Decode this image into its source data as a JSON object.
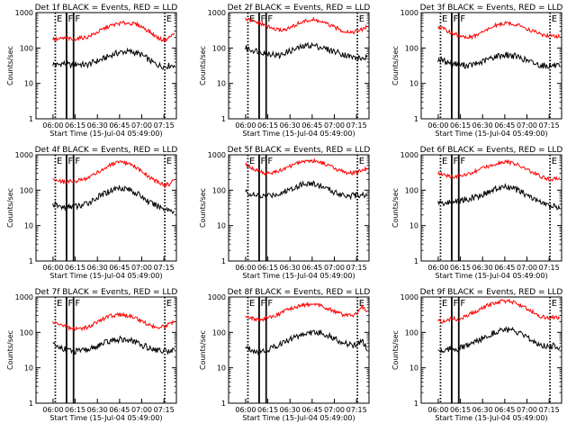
{
  "colors": {
    "events": "#000000",
    "lld": "#ff0000",
    "background": "#ffffff",
    "axes": "#000000"
  },
  "chart_data": [
    {
      "type": "line",
      "title": "Det 1f  BLACK = Events, RED = LLD",
      "xlabel": "Start Time (15-Jul-04 05:49:00)",
      "ylabel": "Counts/sec",
      "yscale": "log",
      "ylim": [
        1,
        1000
      ],
      "yticks": [
        "1",
        "10",
        "100",
        "1000"
      ],
      "xticks": [
        "06:00",
        "06:15",
        "06:30",
        "06:45",
        "07:00",
        "07:15"
      ],
      "markers": [
        {
          "label": "E",
          "style": "dotted"
        },
        {
          "label": "F",
          "style": "solid"
        },
        {
          "label": "F",
          "style": "solid"
        },
        {
          "label": "E",
          "style": "dotted"
        }
      ],
      "series": [
        {
          "color": "black",
          "values": [
            35,
            33,
            37,
            34,
            32,
            36,
            34,
            33,
            38,
            42,
            47,
            54,
            62,
            70,
            76,
            79,
            78,
            74,
            66,
            55,
            44,
            36,
            32,
            30,
            32,
            33
          ]
        },
        {
          "color": "red",
          "values": [
            180,
            175,
            185,
            190,
            170,
            188,
            195,
            200,
            230,
            270,
            320,
            380,
            430,
            470,
            500,
            510,
            500,
            470,
            420,
            350,
            280,
            220,
            180,
            170,
            200,
            260
          ]
        }
      ]
    },
    {
      "type": "line",
      "title": "Det 2f  BLACK = Events, RED = LLD",
      "xlabel": "Start Time (15-Jul-04 05:49:00)",
      "ylabel": "Counts/sec",
      "yscale": "log",
      "ylim": [
        1,
        1000
      ],
      "yticks": [
        "1",
        "10",
        "100",
        "1000"
      ],
      "xticks": [
        "06:00",
        "06:15",
        "06:30",
        "06:45",
        "07:00",
        "07:15"
      ],
      "markers": [
        {
          "label": "E",
          "style": "dotted"
        },
        {
          "label": "F",
          "style": "solid"
        },
        {
          "label": "F",
          "style": "solid"
        },
        {
          "label": "E",
          "style": "dotted"
        }
      ],
      "series": [
        {
          "color": "black",
          "values": [
            100,
            90,
            85,
            80,
            75,
            70,
            65,
            60,
            72,
            80,
            90,
            100,
            110,
            120,
            118,
            110,
            100,
            90,
            82,
            75,
            68,
            60,
            55,
            52,
            50,
            55
          ]
        },
        {
          "color": "red",
          "values": [
            650,
            600,
            550,
            500,
            430,
            380,
            340,
            320,
            330,
            360,
            420,
            500,
            560,
            600,
            620,
            580,
            520,
            460,
            400,
            350,
            310,
            290,
            280,
            300,
            330,
            390
          ]
        }
      ]
    },
    {
      "type": "line",
      "title": "Det 3f  BLACK = Events, RED = LLD",
      "xlabel": "Start Time (15-Jul-04 05:49:00)",
      "ylabel": "Counts/sec",
      "yscale": "log",
      "ylim": [
        1,
        1000
      ],
      "yticks": [
        "1",
        "10",
        "100",
        "1000"
      ],
      "xticks": [
        "06:00",
        "06:15",
        "06:30",
        "06:45",
        "07:00",
        "07:15"
      ],
      "markers": [
        {
          "label": "E",
          "style": "dotted"
        },
        {
          "label": "F",
          "style": "solid"
        },
        {
          "label": "F",
          "style": "solid"
        },
        {
          "label": "E",
          "style": "dotted"
        }
      ],
      "series": [
        {
          "color": "black",
          "values": [
            48,
            44,
            40,
            37,
            35,
            33,
            32,
            33,
            36,
            40,
            46,
            52,
            58,
            62,
            64,
            62,
            58,
            52,
            46,
            40,
            36,
            33,
            32,
            31,
            32,
            30
          ]
        },
        {
          "color": "red",
          "values": [
            400,
            350,
            300,
            260,
            230,
            210,
            200,
            205,
            230,
            270,
            320,
            380,
            440,
            480,
            500,
            490,
            460,
            420,
            370,
            320,
            280,
            250,
            230,
            220,
            215,
            210
          ]
        }
      ]
    },
    {
      "type": "line",
      "title": "Det 4f  BLACK = Events, RED = LLD",
      "xlabel": "Start Time (15-Jul-04 05:49:00)",
      "ylabel": "Counts/sec",
      "yscale": "log",
      "ylim": [
        1,
        1000
      ],
      "yticks": [
        "1",
        "10",
        "100",
        "1000"
      ],
      "xticks": [
        "06:00",
        "06:15",
        "06:30",
        "06:45",
        "07:00",
        "07:15"
      ],
      "markers": [
        {
          "label": "E",
          "style": "dotted"
        },
        {
          "label": "F",
          "style": "solid"
        },
        {
          "label": "F",
          "style": "solid"
        },
        {
          "label": "E",
          "style": "dotted"
        }
      ],
      "series": [
        {
          "color": "black",
          "values": [
            40,
            36,
            33,
            34,
            36,
            35,
            37,
            42,
            50,
            60,
            72,
            85,
            100,
            112,
            118,
            112,
            100,
            85,
            70,
            55,
            44,
            38,
            34,
            30,
            28,
            26
          ]
        },
        {
          "color": "red",
          "values": [
            210,
            190,
            175,
            170,
            180,
            185,
            195,
            220,
            260,
            310,
            370,
            440,
            520,
            580,
            600,
            570,
            510,
            440,
            360,
            290,
            230,
            190,
            160,
            140,
            150,
            190
          ]
        }
      ]
    },
    {
      "type": "line",
      "title": "Det 5f  BLACK = Events, RED = LLD",
      "xlabel": "Start Time (15-Jul-04 05:49:00)",
      "ylabel": "Counts/sec",
      "yscale": "log",
      "ylim": [
        1,
        1000
      ],
      "yticks": [
        "1",
        "10",
        "100",
        "1000"
      ],
      "xticks": [
        "06:00",
        "06:15",
        "06:30",
        "06:45",
        "07:00",
        "07:15"
      ],
      "markers": [
        {
          "label": "E",
          "style": "dotted"
        },
        {
          "label": "F",
          "style": "solid"
        },
        {
          "label": "F",
          "style": "solid"
        },
        {
          "label": "E",
          "style": "dotted"
        }
      ],
      "series": [
        {
          "color": "black",
          "values": [
            90,
            80,
            70,
            66,
            68,
            72,
            76,
            80,
            90,
            104,
            120,
            138,
            150,
            156,
            150,
            138,
            122,
            106,
            92,
            82,
            76,
            72,
            70,
            72,
            78,
            70
          ]
        },
        {
          "color": "red",
          "values": [
            520,
            450,
            380,
            330,
            300,
            300,
            320,
            350,
            400,
            460,
            530,
            600,
            660,
            690,
            680,
            640,
            580,
            510,
            440,
            380,
            340,
            310,
            300,
            320,
            370,
            420
          ]
        }
      ]
    },
    {
      "type": "line",
      "title": "Det 6f  BLACK = Events, RED = LLD",
      "xlabel": "Start Time (15-Jul-04 05:49:00)",
      "ylabel": "Counts/sec",
      "yscale": "log",
      "ylim": [
        1,
        1000
      ],
      "yticks": [
        "1",
        "10",
        "100",
        "1000"
      ],
      "xticks": [
        "06:00",
        "06:15",
        "06:30",
        "06:45",
        "07:00",
        "07:15"
      ],
      "markers": [
        {
          "label": "E",
          "style": "dotted"
        },
        {
          "label": "F",
          "style": "solid"
        },
        {
          "label": "F",
          "style": "solid"
        },
        {
          "label": "E",
          "style": "dotted"
        }
      ],
      "series": [
        {
          "color": "black",
          "values": [
            45,
            42,
            44,
            46,
            50,
            52,
            56,
            60,
            66,
            74,
            84,
            96,
            108,
            118,
            122,
            116,
            104,
            90,
            76,
            64,
            54,
            46,
            40,
            36,
            34,
            30
          ]
        },
        {
          "color": "red",
          "values": [
            300,
            270,
            250,
            245,
            250,
            260,
            280,
            310,
            350,
            400,
            460,
            520,
            580,
            620,
            630,
            600,
            540,
            470,
            400,
            340,
            290,
            250,
            220,
            200,
            210,
            230
          ]
        }
      ]
    },
    {
      "type": "line",
      "title": "Det 7f  BLACK = Events, RED = LLD",
      "xlabel": "Start Time (15-Jul-04 05:49:00)",
      "ylabel": "Counts/sec",
      "yscale": "log",
      "ylim": [
        1,
        1000
      ],
      "yticks": [
        "1",
        "10",
        "100",
        "1000"
      ],
      "xticks": [
        "06:00",
        "06:15",
        "06:30",
        "06:45",
        "07:00",
        "07:15"
      ],
      "markers": [
        {
          "label": "E",
          "style": "dotted"
        },
        {
          "label": "F",
          "style": "solid"
        },
        {
          "label": "F",
          "style": "solid"
        },
        {
          "label": "E",
          "style": "dotted"
        }
      ],
      "series": [
        {
          "color": "black",
          "values": [
            45,
            40,
            36,
            32,
            30,
            29,
            30,
            32,
            35,
            40,
            46,
            52,
            58,
            62,
            64,
            62,
            58,
            52,
            46,
            40,
            36,
            33,
            31,
            30,
            30,
            32
          ]
        },
        {
          "color": "red",
          "values": [
            200,
            175,
            155,
            140,
            130,
            125,
            128,
            140,
            160,
            190,
            225,
            260,
            290,
            310,
            315,
            305,
            285,
            255,
            220,
            185,
            160,
            145,
            140,
            150,
            175,
            210
          ]
        }
      ]
    },
    {
      "type": "line",
      "title": "Det 8f  BLACK = Events, RED = LLD",
      "xlabel": "Start Time (15-Jul-04 05:49:00)",
      "ylabel": "Counts/sec",
      "yscale": "log",
      "ylim": [
        1,
        1000
      ],
      "yticks": [
        "1",
        "10",
        "100",
        "1000"
      ],
      "xticks": [
        "06:00",
        "06:15",
        "06:30",
        "06:45",
        "07:00",
        "07:15"
      ],
      "markers": [
        {
          "label": "E",
          "style": "dotted"
        },
        {
          "label": "F",
          "style": "solid"
        },
        {
          "label": "F",
          "style": "solid"
        },
        {
          "label": "E",
          "style": "dotted"
        }
      ],
      "series": [
        {
          "color": "black",
          "values": [
            40,
            34,
            30,
            28,
            30,
            34,
            40,
            46,
            54,
            62,
            72,
            82,
            90,
            96,
            100,
            98,
            92,
            82,
            70,
            60,
            52,
            46,
            42,
            44,
            60,
            30
          ]
        },
        {
          "color": "red",
          "values": [
            300,
            270,
            240,
            230,
            240,
            260,
            300,
            340,
            390,
            440,
            500,
            560,
            600,
            620,
            610,
            580,
            530,
            470,
            410,
            360,
            320,
            300,
            300,
            340,
            520,
            380
          ]
        }
      ]
    },
    {
      "type": "line",
      "title": "Det 9f  BLACK = Events, RED = LLD",
      "xlabel": "Start Time (15-Jul-04 05:49:00)",
      "ylabel": "Counts/sec",
      "yscale": "log",
      "ylim": [
        1,
        1000
      ],
      "yticks": [
        "1",
        "10",
        "100",
        "1000"
      ],
      "xticks": [
        "06:00",
        "06:15",
        "06:30",
        "06:45",
        "07:00",
        "07:15"
      ],
      "markers": [
        {
          "label": "E",
          "style": "dotted"
        },
        {
          "label": "F",
          "style": "solid"
        },
        {
          "label": "F",
          "style": "solid"
        },
        {
          "label": "E",
          "style": "dotted"
        }
      ],
      "series": [
        {
          "color": "black",
          "values": [
            32,
            30,
            34,
            36,
            34,
            38,
            42,
            48,
            56,
            66,
            78,
            92,
            106,
            116,
            120,
            114,
            102,
            88,
            74,
            62,
            52,
            46,
            42,
            40,
            42,
            38
          ]
        },
        {
          "color": "red",
          "values": [
            210,
            200,
            230,
            250,
            230,
            260,
            300,
            350,
            410,
            480,
            560,
            640,
            710,
            760,
            770,
            730,
            660,
            580,
            490,
            410,
            340,
            290,
            260,
            250,
            270,
            250
          ]
        }
      ]
    }
  ]
}
